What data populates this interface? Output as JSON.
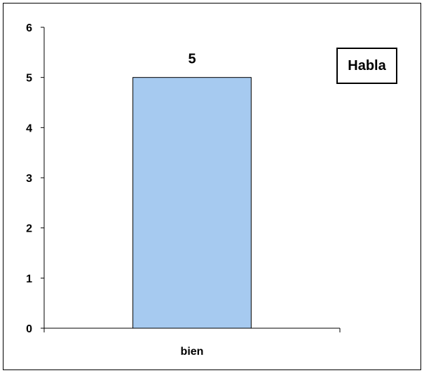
{
  "chart_data": {
    "type": "bar",
    "categories": [
      "bien"
    ],
    "series": [
      {
        "name": "Habla",
        "values": [
          5
        ]
      }
    ],
    "data_labels": [
      "5"
    ],
    "legend": {
      "entries": [
        "Habla"
      ],
      "placement": "top-right"
    },
    "ylim": [
      0,
      6
    ],
    "yticks": [
      0,
      1,
      2,
      3,
      4,
      5,
      6
    ],
    "ytick_labels": [
      "0",
      "1",
      "2",
      "3",
      "4",
      "5",
      "6"
    ],
    "grid": false,
    "colors": {
      "bar_fill": "#A6CAF0",
      "bar_stroke": "#000000",
      "axis": "#000000"
    }
  }
}
